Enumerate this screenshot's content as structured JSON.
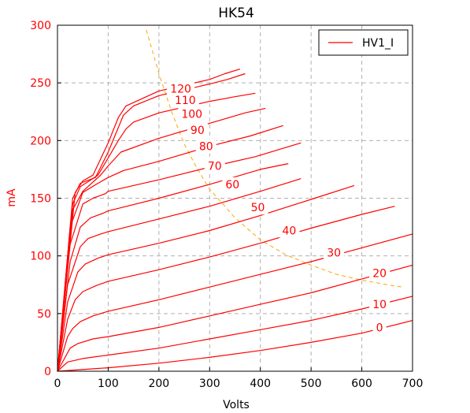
{
  "chart_data": {
    "type": "line",
    "title": "HK54",
    "xlabel": "Volts",
    "ylabel": "mA",
    "xlim": [
      0,
      700
    ],
    "ylim": [
      0,
      300
    ],
    "xticks": [
      0,
      100,
      200,
      300,
      400,
      500,
      600,
      700
    ],
    "yticks": [
      0,
      50,
      100,
      150,
      200,
      250,
      300
    ],
    "grid": true,
    "legend": {
      "placement": "top-right",
      "entries": [
        "HV1_I"
      ]
    },
    "colors": {
      "curves": "#ff0000",
      "load_line": "#ffa500",
      "y_axis_text": "#ff0000",
      "grid": "#b0b0b0"
    },
    "load_line": {
      "style": "dashed",
      "points": [
        [
          175,
          296
        ],
        [
          200,
          258
        ],
        [
          225,
          225
        ],
        [
          250,
          197
        ],
        [
          275,
          176
        ],
        [
          300,
          158
        ],
        [
          350,
          133
        ],
        [
          400,
          114
        ],
        [
          450,
          101
        ],
        [
          500,
          92
        ],
        [
          550,
          84
        ],
        [
          600,
          79
        ],
        [
          650,
          75
        ],
        [
          680,
          73
        ]
      ]
    },
    "series": [
      {
        "label": "0",
        "points": [
          [
            0,
            0
          ],
          [
            100,
            3
          ],
          [
            200,
            7
          ],
          [
            300,
            12
          ],
          [
            400,
            18
          ],
          [
            500,
            25
          ],
          [
            600,
            33
          ],
          [
            700,
            44
          ]
        ],
        "label_at": [
          635,
          38
        ]
      },
      {
        "label": "10",
        "points": [
          [
            0,
            0
          ],
          [
            20,
            8
          ],
          [
            50,
            11
          ],
          [
            100,
            14
          ],
          [
            200,
            20
          ],
          [
            300,
            28
          ],
          [
            400,
            36
          ],
          [
            500,
            44
          ],
          [
            600,
            54
          ],
          [
            700,
            65
          ]
        ],
        "label_at": [
          635,
          58
        ]
      },
      {
        "label": "20",
        "points": [
          [
            0,
            0
          ],
          [
            15,
            12
          ],
          [
            25,
            20
          ],
          [
            40,
            24
          ],
          [
            70,
            28
          ],
          [
            100,
            30
          ],
          [
            200,
            38
          ],
          [
            300,
            48
          ],
          [
            400,
            58
          ],
          [
            500,
            68
          ],
          [
            600,
            80
          ],
          [
            700,
            92
          ]
        ],
        "label_at": [
          635,
          85
        ]
      },
      {
        "label": "30",
        "points": [
          [
            0,
            0
          ],
          [
            20,
            30
          ],
          [
            30,
            37
          ],
          [
            45,
            43
          ],
          [
            70,
            48
          ],
          [
            100,
            52
          ],
          [
            200,
            62
          ],
          [
            300,
            73
          ],
          [
            400,
            84
          ],
          [
            500,
            95
          ],
          [
            600,
            107
          ],
          [
            700,
            119
          ]
        ],
        "label_at": [
          545,
          103
        ]
      },
      {
        "label": "40",
        "points": [
          [
            0,
            0
          ],
          [
            20,
            45
          ],
          [
            35,
            62
          ],
          [
            50,
            69
          ],
          [
            75,
            74
          ],
          [
            100,
            78
          ],
          [
            200,
            88
          ],
          [
            300,
            99
          ],
          [
            400,
            111
          ],
          [
            500,
            124
          ],
          [
            600,
            136
          ],
          [
            665,
            143
          ]
        ],
        "label_at": [
          457,
          122
        ]
      },
      {
        "label": "50",
        "points": [
          [
            0,
            0
          ],
          [
            20,
            60
          ],
          [
            40,
            86
          ],
          [
            55,
            93
          ],
          [
            80,
            98
          ],
          [
            100,
            101
          ],
          [
            200,
            111
          ],
          [
            300,
            122
          ],
          [
            400,
            135
          ],
          [
            500,
            149
          ],
          [
            585,
            161
          ]
        ],
        "label_at": [
          395,
          142
        ]
      },
      {
        "label": "60",
        "points": [
          [
            0,
            0
          ],
          [
            20,
            75
          ],
          [
            45,
            108
          ],
          [
            60,
            115
          ],
          [
            85,
            119
          ],
          [
            100,
            121
          ],
          [
            200,
            132
          ],
          [
            300,
            143
          ],
          [
            400,
            156
          ],
          [
            480,
            167
          ]
        ],
        "label_at": [
          345,
          162
        ]
      },
      {
        "label": "70",
        "points": [
          [
            0,
            0
          ],
          [
            25,
            95
          ],
          [
            45,
            125
          ],
          [
            65,
            133
          ],
          [
            90,
            137
          ],
          [
            100,
            139
          ],
          [
            200,
            150
          ],
          [
            300,
            162
          ],
          [
            400,
            175
          ],
          [
            455,
            180
          ]
        ],
        "label_at": [
          310,
          178
        ]
      },
      {
        "label": "80",
        "points": [
          [
            0,
            0
          ],
          [
            25,
            110
          ],
          [
            50,
            145
          ],
          [
            70,
            150
          ],
          [
            95,
            154
          ],
          [
            100,
            156
          ],
          [
            200,
            166
          ],
          [
            300,
            177
          ],
          [
            390,
            186
          ],
          [
            480,
            198
          ]
        ],
        "label_at": [
          293,
          195
        ]
      },
      {
        "label": "90",
        "points": [
          [
            0,
            0
          ],
          [
            25,
            125
          ],
          [
            50,
            155
          ],
          [
            80,
            163
          ],
          [
            100,
            168
          ],
          [
            130,
            174
          ],
          [
            200,
            182
          ],
          [
            300,
            195
          ],
          [
            380,
            204
          ],
          [
            445,
            213
          ]
        ],
        "label_at": [
          276,
          209
        ]
      },
      {
        "label": "100",
        "points": [
          [
            0,
            0
          ],
          [
            30,
            140
          ],
          [
            50,
            156
          ],
          [
            85,
            170
          ],
          [
            100,
            178
          ],
          [
            125,
            190
          ],
          [
            200,
            202
          ],
          [
            300,
            215
          ],
          [
            370,
            224
          ],
          [
            410,
            228
          ]
        ],
        "label_at": [
          265,
          223
        ]
      },
      {
        "label": "110",
        "points": [
          [
            0,
            0
          ],
          [
            30,
            145
          ],
          [
            45,
            160
          ],
          [
            80,
            170
          ],
          [
            100,
            185
          ],
          [
            120,
            200
          ],
          [
            135,
            210
          ],
          [
            150,
            216
          ],
          [
            200,
            224
          ],
          [
            300,
            234
          ],
          [
            350,
            238
          ],
          [
            390,
            241
          ]
        ],
        "label_at": [
          252,
          235
        ]
      },
      {
        "label": "120",
        "points": [
          [
            0,
            0
          ],
          [
            30,
            150
          ],
          [
            45,
            163
          ],
          [
            75,
            168
          ],
          [
            100,
            190
          ],
          [
            130,
            222
          ],
          [
            150,
            230
          ],
          [
            200,
            239
          ],
          [
            300,
            249
          ],
          [
            335,
            253
          ],
          [
            370,
            258
          ]
        ],
        "label_at": [
          243,
          245
        ]
      },
      {
        "label": "",
        "points": [
          [
            0,
            0
          ],
          [
            35,
            155
          ],
          [
            50,
            165
          ],
          [
            70,
            170
          ],
          [
            100,
            198
          ],
          [
            120,
            220
          ],
          [
            135,
            230
          ],
          [
            165,
            236
          ],
          [
            200,
            243
          ],
          [
            300,
            253
          ],
          [
            330,
            258
          ],
          [
            360,
            262
          ]
        ]
      }
    ]
  }
}
